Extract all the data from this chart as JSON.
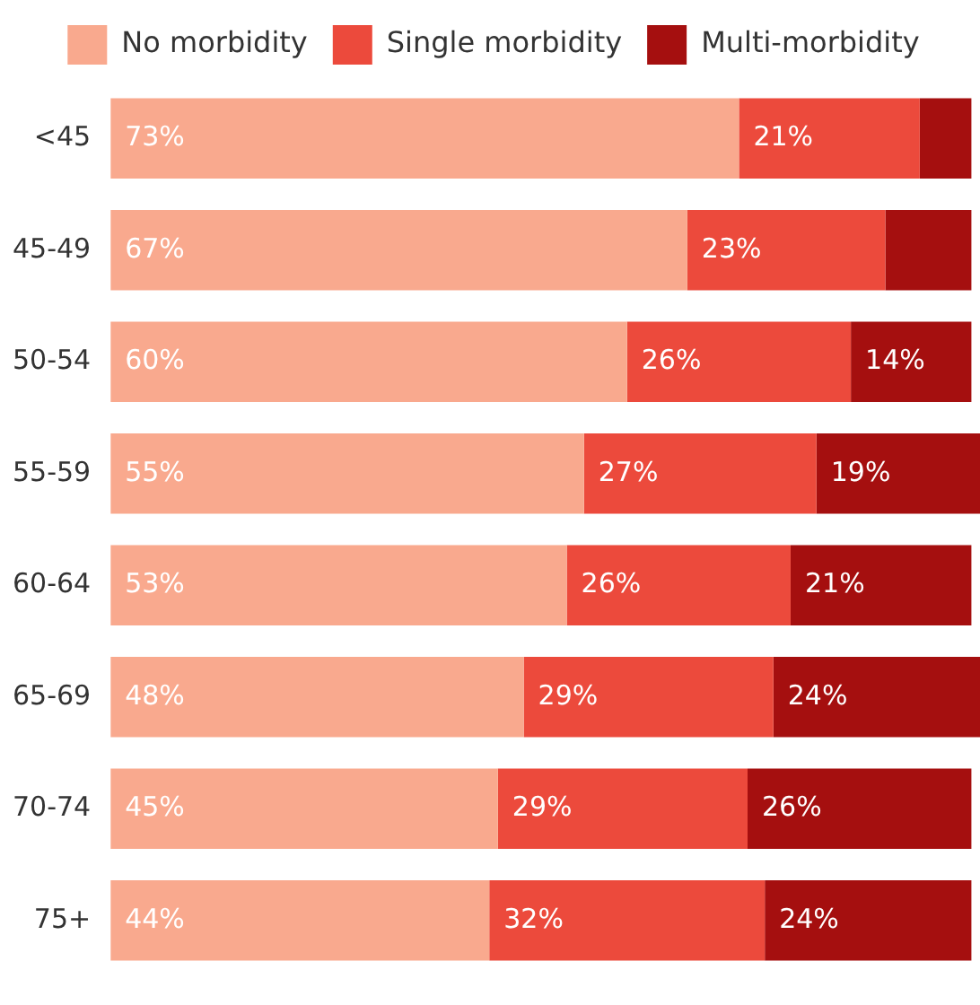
{
  "chart_data": {
    "type": "bar",
    "orientation": "horizontal",
    "stacked": true,
    "categories": [
      "<45",
      "45-49",
      "50-54",
      "55-59",
      "60-64",
      "65-69",
      "70-74",
      "75+"
    ],
    "series": [
      {
        "name": "No morbidity",
        "color": "#f9a98e",
        "values": [
          73,
          67,
          60,
          55,
          53,
          48,
          45,
          44
        ],
        "value_labels": [
          "73%",
          "67%",
          "60%",
          "55%",
          "53%",
          "48%",
          "45%",
          "44%"
        ]
      },
      {
        "name": "Single morbidity",
        "color": "#ec4a3c",
        "values": [
          21,
          23,
          26,
          27,
          26,
          29,
          29,
          32
        ],
        "value_labels": [
          "21%",
          "23%",
          "26%",
          "27%",
          "26%",
          "29%",
          "29%",
          "32%"
        ]
      },
      {
        "name": "Multi-morbidity",
        "color": "#a50f0f",
        "values": [
          6,
          10,
          14,
          19,
          21,
          24,
          26,
          24
        ],
        "value_labels": [
          null,
          null,
          "14%",
          "19%",
          "21%",
          "24%",
          "26%",
          "24%"
        ]
      }
    ],
    "tick_labels": "y",
    "legend": "top"
  }
}
